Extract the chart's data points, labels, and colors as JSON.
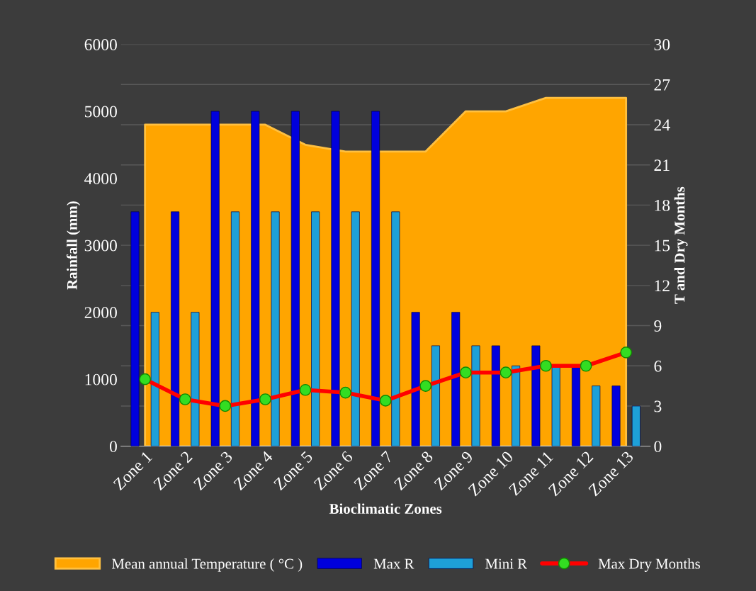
{
  "chart_data": {
    "type": "bar",
    "xlabel": "Bioclimatic Zones",
    "ylabel": "Rainfall (mm)",
    "y2label": "T and Dry Months",
    "categories": [
      "Zone 1",
      "Zone 2",
      "Zone 3",
      "Zone 4",
      "Zone 5",
      "Zone 6",
      "Zone 7",
      "Zone 8",
      "Zone 9",
      "Zone 10",
      "Zone 11",
      "Zone 12",
      "Zone 13"
    ],
    "series": [
      {
        "name": "Mean annual Temperature ( °C )",
        "type": "area",
        "axis": "y2",
        "color": "#ffa500",
        "values": [
          24,
          24,
          24,
          24,
          22.5,
          22,
          22,
          22,
          25,
          25,
          26,
          26,
          26
        ]
      },
      {
        "name": "Max R",
        "color": "#0000dd",
        "values": [
          3500,
          3500,
          5000,
          5000,
          5000,
          5000,
          5000,
          2000,
          2000,
          1500,
          1500,
          1200,
          900
        ]
      },
      {
        "name": "Mini R",
        "color": "#1ea0d8",
        "values": [
          2000,
          2000,
          3500,
          3500,
          3500,
          3500,
          3500,
          1500,
          1500,
          1200,
          1200,
          900,
          600
        ]
      },
      {
        "name": "Max Dry Months",
        "type": "line",
        "axis": "y2",
        "color": "#ff0000",
        "marker": "circle",
        "values": [
          5,
          3.5,
          3,
          3.5,
          4.2,
          4,
          3.4,
          4.5,
          5.5,
          5.5,
          6,
          6,
          7
        ]
      }
    ],
    "ylim": [
      0,
      6000
    ],
    "yticks": [
      0,
      1000,
      2000,
      3000,
      4000,
      5000,
      6000
    ],
    "y2lim": [
      0,
      30
    ],
    "y2ticks": [
      0,
      3,
      6,
      9,
      12,
      15,
      18,
      21,
      24,
      27,
      30
    ],
    "grid": "y",
    "legend": "bottom"
  }
}
